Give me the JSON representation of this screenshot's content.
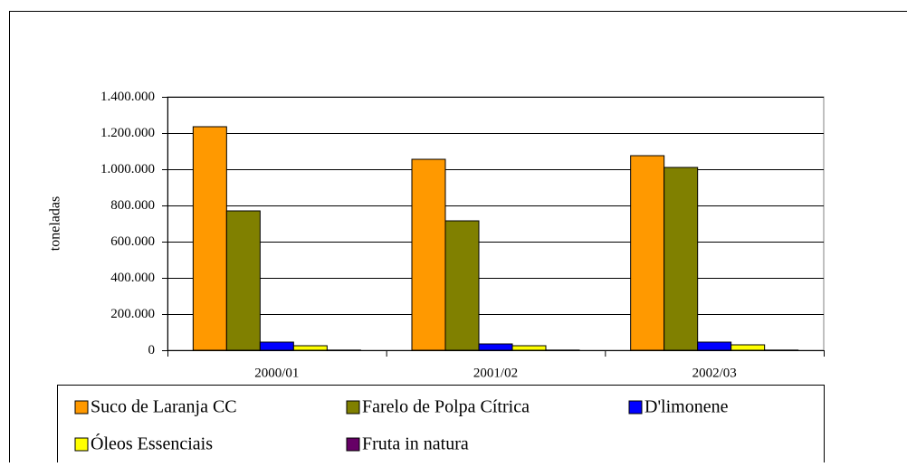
{
  "chart_data": {
    "type": "bar",
    "categories": [
      "2000/01",
      "2001/02",
      "2002/03"
    ],
    "y_label": "toneladas",
    "series": [
      {
        "name": "Suco de Laranja CC",
        "color": "#ff9900",
        "values": [
          1235000,
          1055000,
          1075000
        ]
      },
      {
        "name": "Farelo de Polpa Cítrica",
        "color": "#808000",
        "values": [
          770000,
          715000,
          1010000
        ]
      },
      {
        "name": "D'limonene",
        "color": "#0000ff",
        "values": [
          45000,
          35000,
          45000
        ]
      },
      {
        "name": "Óleos Essenciais",
        "color": "#ffff00",
        "values": [
          25000,
          25000,
          30000
        ]
      },
      {
        "name": "Fruta in natura",
        "color": "#660066",
        "values": [
          1000,
          1000,
          1000
        ]
      }
    ],
    "ylim": [
      0,
      1400000
    ],
    "yticks": [
      0,
      {
        "value": 200000,
        "label": "200.000"
      },
      {
        "value": 400000,
        "label": "400.000"
      },
      {
        "value": 600000,
        "label": "600.000"
      },
      {
        "value": 800000,
        "label": "800.000"
      },
      {
        "value": 1000000,
        "label": "1.000.000"
      },
      {
        "value": 1200000,
        "label": "1.200.000"
      },
      {
        "value": 1400000,
        "label": "1.400.000"
      }
    ],
    "grid": true
  }
}
